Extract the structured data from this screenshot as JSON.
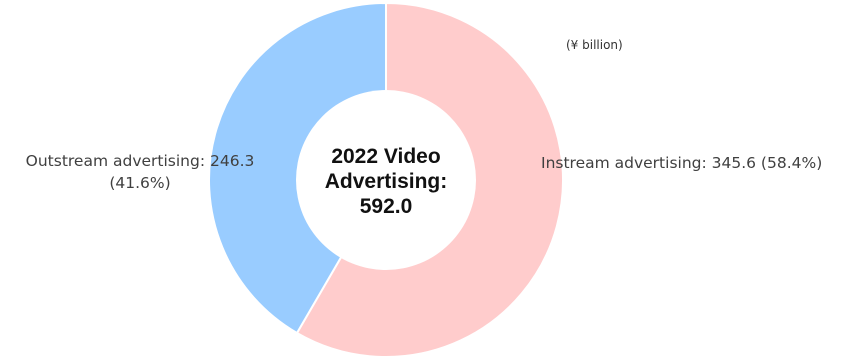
{
  "chart_data": {
    "type": "pie",
    "unit": "(¥ billion)",
    "center": {
      "lines": [
        "2022 Video",
        "Advertising:",
        "592.0"
      ]
    },
    "slices": [
      {
        "label": "Instream advertising",
        "value": 345.6,
        "percent": 58.4,
        "color": "#ffcccc",
        "text_lines": [
          "Instream advertising: 345.6 (58.4%)"
        ]
      },
      {
        "label": "Outstream advertising",
        "value": 246.3,
        "percent": 41.6,
        "color": "#99ccff",
        "text_lines": [
          "Outstream advertising: 246.3",
          "(41.6%)"
        ]
      }
    ],
    "start_angle_deg": 0,
    "direction": "clockwise",
    "donut": true,
    "legend": "none"
  }
}
